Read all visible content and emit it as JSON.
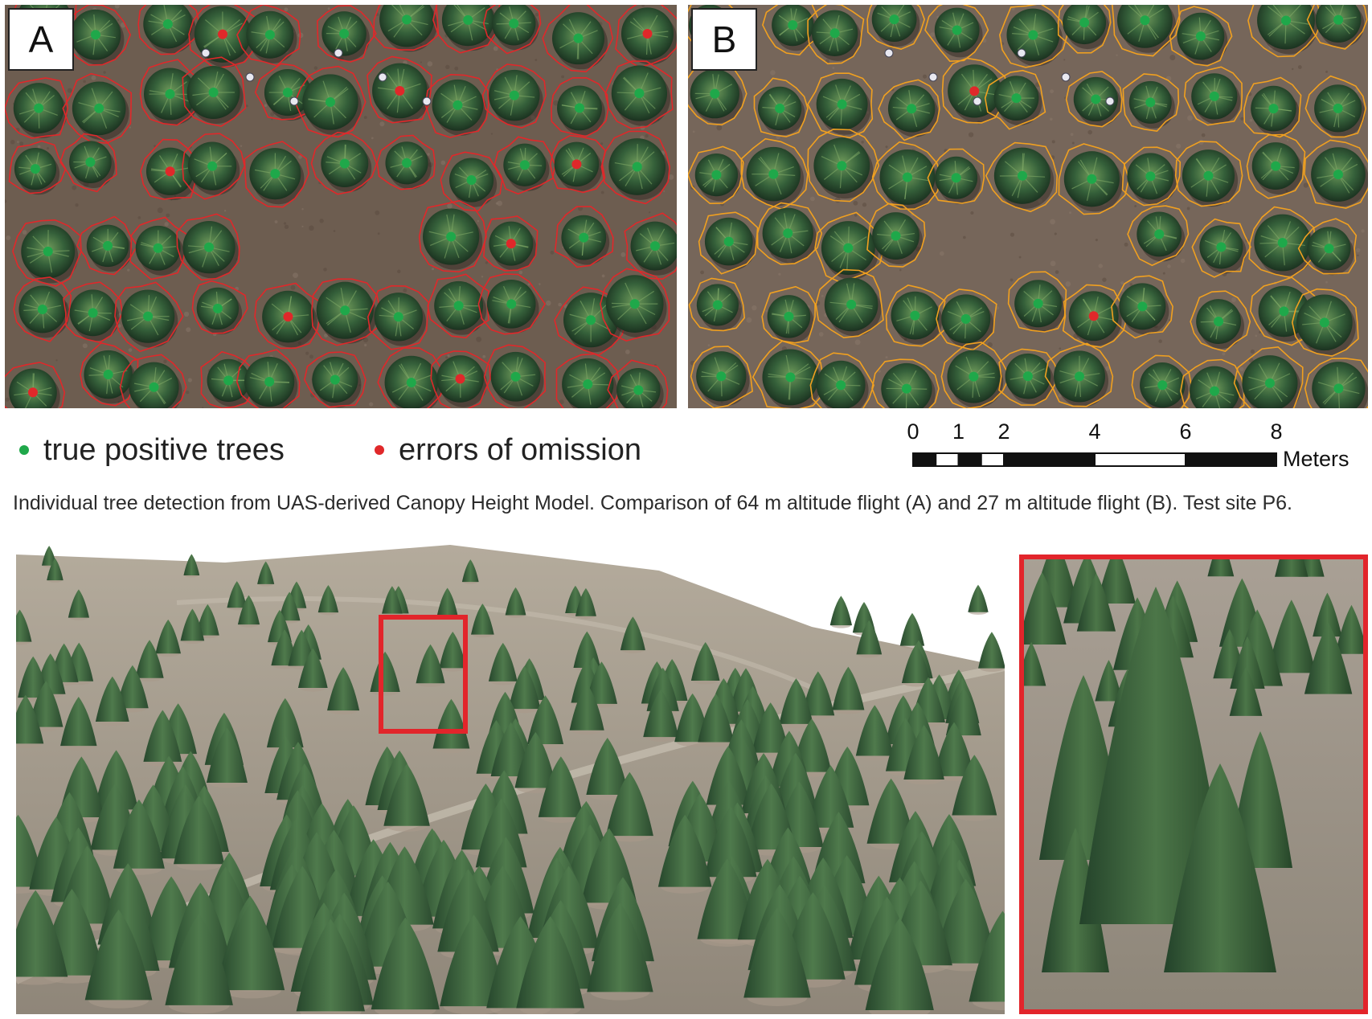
{
  "panel_a": {
    "label": "A",
    "outline_color": "#e0282a",
    "detections": [
      {
        "status": "true_positive"
      },
      {
        "status": "true_positive"
      },
      {
        "status": "true_positive"
      },
      {
        "status": "true_positive"
      },
      {
        "status": "omission"
      },
      {
        "status": "omission"
      },
      {
        "status": "omission"
      },
      {
        "status": "omission"
      },
      {
        "status": "omission"
      },
      {
        "status": "omission"
      },
      {
        "status": "omission"
      },
      {
        "status": "omission"
      },
      {
        "status": "omission"
      }
    ]
  },
  "panel_b": {
    "label": "B",
    "outline_color": "#f0a020",
    "detections": [
      {
        "status": "omission"
      },
      {
        "status": "omission"
      }
    ]
  },
  "legend": {
    "true_positive_label": "true positive trees",
    "true_positive_color": "#1fa84a",
    "omission_label": "errors of omission",
    "omission_color": "#e0282a"
  },
  "scale_bar": {
    "ticks": [
      "0",
      "1",
      "2",
      "4",
      "6",
      "8"
    ],
    "unit": "Meters"
  },
  "caption": "Individual tree detection from UAS-derived Canopy Height Model.  Comparison of 64 m altitude flight (A) and 27 m altitude flight (B). Test site P6.",
  "inset_frame_color": "#e2252b"
}
